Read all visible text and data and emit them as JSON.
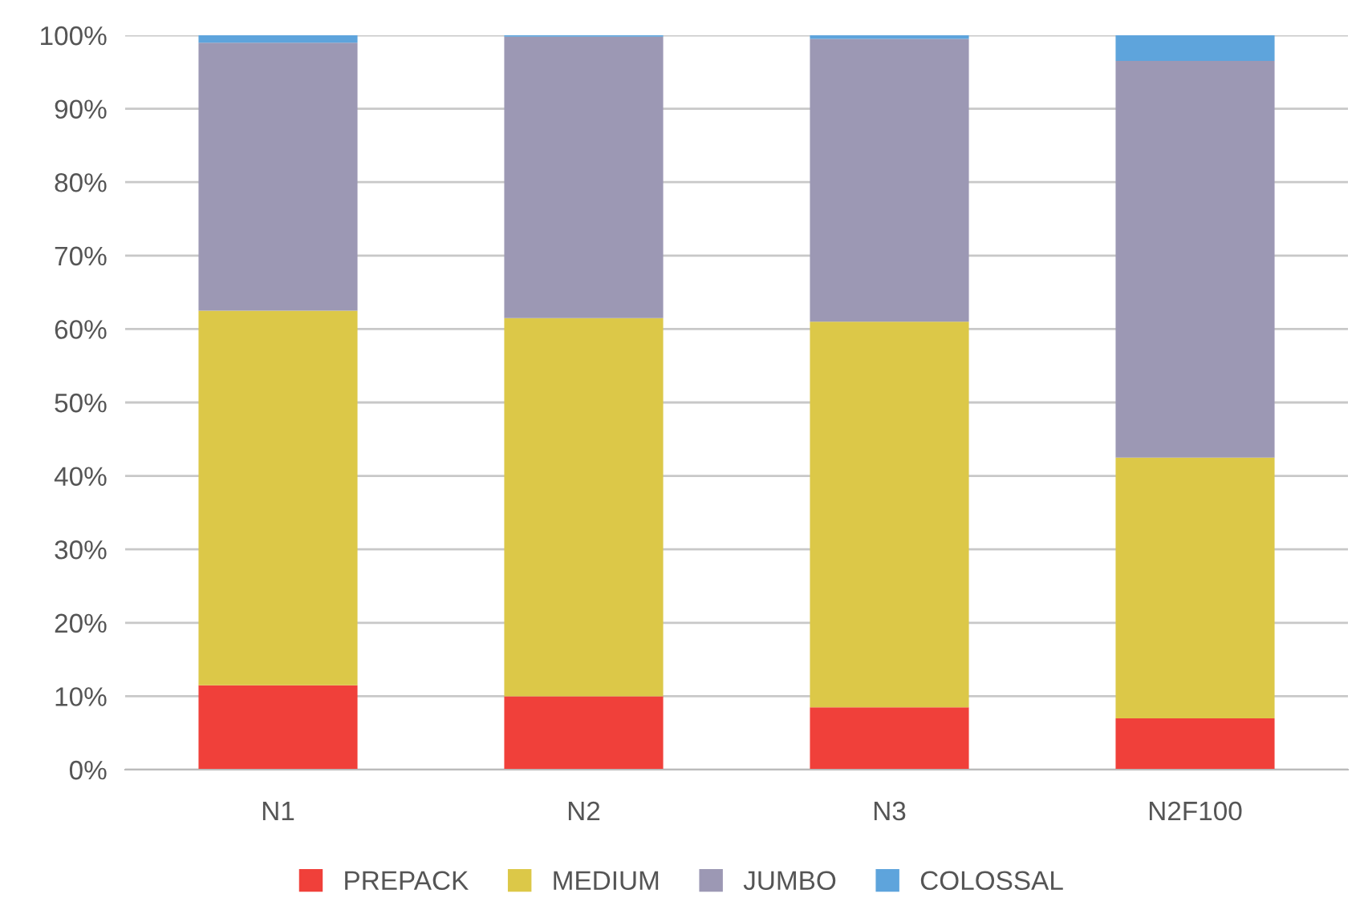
{
  "chart_data": {
    "type": "bar",
    "stacked": true,
    "categories": [
      "N1",
      "N2",
      "N3",
      "N2F100"
    ],
    "series": [
      {
        "name": "PREPACK",
        "color": "#f0403a",
        "values": [
          11.5,
          10,
          8.5,
          7
        ]
      },
      {
        "name": "MEDIUM",
        "color": "#dcc848",
        "values": [
          51,
          51.5,
          52.5,
          35.5
        ]
      },
      {
        "name": "JUMBO",
        "color": "#9c98b4",
        "values": [
          36.5,
          38.3,
          38.5,
          54
        ]
      },
      {
        "name": "COLOSSAL",
        "color": "#5ea4dc",
        "values": [
          1,
          0.2,
          0.5,
          3.5
        ]
      }
    ],
    "ylim": [
      0,
      100
    ],
    "yticks": [
      {
        "value": 0,
        "label": "0%"
      },
      {
        "value": 10,
        "label": "10%"
      },
      {
        "value": 20,
        "label": "20%"
      },
      {
        "value": 30,
        "label": "30%"
      },
      {
        "value": 40,
        "label": "40%"
      },
      {
        "value": 50,
        "label": "50%"
      },
      {
        "value": 60,
        "label": "60%"
      },
      {
        "value": 70,
        "label": "70%"
      },
      {
        "value": 80,
        "label": "80%"
      },
      {
        "value": 90,
        "label": "90%"
      },
      {
        "value": 100,
        "label": "100%"
      }
    ],
    "grid": "y",
    "legend": "bottom"
  }
}
